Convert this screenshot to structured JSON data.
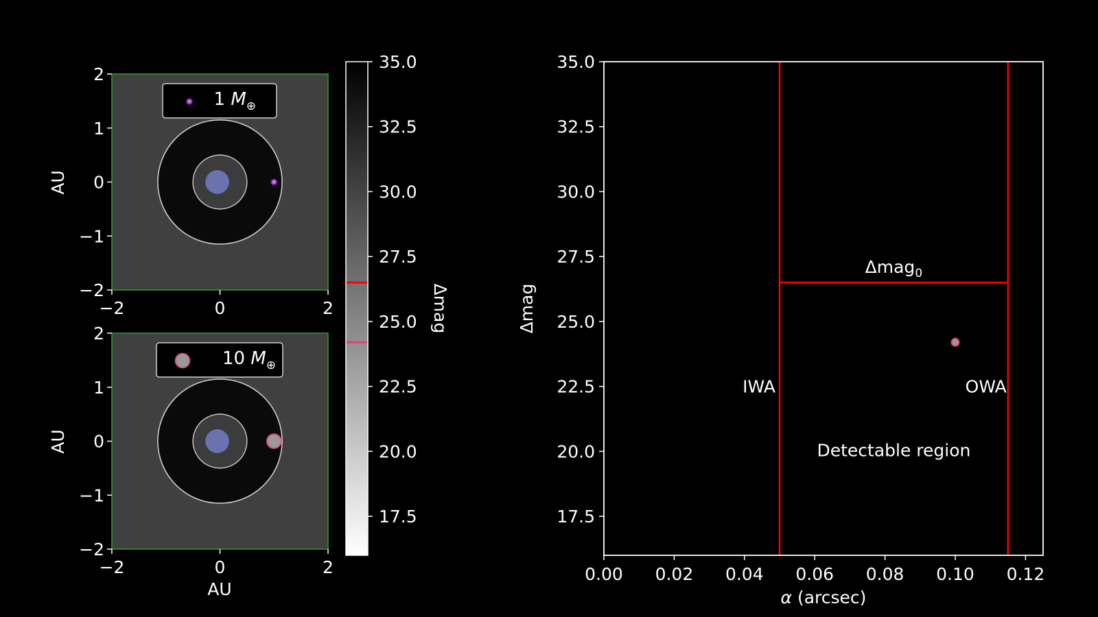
{
  "colors": {
    "background": "#000000",
    "axes_frame": "#ffffff",
    "orbit_panel_bg": "#404040",
    "orbit_panel_frame": "#2ca02c",
    "orbit_region": "#0a0a0a",
    "orbit_line": "#cccccc",
    "inner_circle": "#3c3c3c",
    "star": "#6a72b0",
    "planet_1_fill": "#9b9b9b",
    "planet_1_edge": "#9400d3",
    "planet_10_fill": "#999999",
    "planet_10_edge": "#e05080",
    "limit_line": "#ff0000",
    "planet_10_marker": "#e04080"
  },
  "chart_data": [
    {
      "id": "orbit-1",
      "type": "scatter",
      "xlabel": "",
      "ylabel": "AU",
      "xlim": [
        -2,
        2
      ],
      "ylim": [
        -2,
        2
      ],
      "x_ticks": [
        "−2",
        "0",
        "2"
      ],
      "y_ticks": [
        "2",
        "1",
        "0",
        "−1",
        "−2"
      ],
      "legend": {
        "label": "1",
        "unit": "M",
        "sub": "⊕",
        "placement": "top-center"
      },
      "star": {
        "x": -0.05,
        "y": 0,
        "r": 0.22
      },
      "inner_circle_r": 0.5,
      "orbit_r": 1.15,
      "planet": {
        "x": 1.0,
        "y": 0,
        "r": 0.05
      }
    },
    {
      "id": "orbit-10",
      "type": "scatter",
      "xlabel": "AU",
      "ylabel": "AU",
      "xlim": [
        -2,
        2
      ],
      "ylim": [
        -2,
        2
      ],
      "x_ticks": [
        "−2",
        "0",
        "2"
      ],
      "y_ticks": [
        "2",
        "1",
        "0",
        "−1",
        "−2"
      ],
      "legend": {
        "label": "10",
        "unit": "M",
        "sub": "⊕",
        "placement": "top-center"
      },
      "star": {
        "x": -0.05,
        "y": 0,
        "r": 0.22
      },
      "inner_circle_r": 0.5,
      "orbit_r": 1.15,
      "planet": {
        "x": 1.0,
        "y": 0,
        "r": 0.13
      }
    },
    {
      "id": "colorbar",
      "type": "heatmap",
      "label": "Δmag",
      "range": [
        16,
        35
      ],
      "ticks": [
        "35.0",
        "32.5",
        "30.0",
        "27.5",
        "25.0",
        "22.5",
        "20.0",
        "17.5"
      ],
      "tick_values": [
        35,
        32.5,
        30,
        27.5,
        25,
        22.5,
        20,
        17.5
      ],
      "markers": [
        {
          "value": 26.5,
          "color": "#ff0000"
        },
        {
          "value": 24.2,
          "color": "#e04080"
        }
      ]
    },
    {
      "id": "detection",
      "type": "scatter",
      "xlabel_prefix": "α",
      "xlabel_suffix": " (arcsec)",
      "ylabel": "Δmag",
      "xlim": [
        0,
        0.125
      ],
      "ylim": [
        16,
        35
      ],
      "x_ticks": [
        "0.00",
        "0.02",
        "0.04",
        "0.06",
        "0.08",
        "0.10",
        "0.12"
      ],
      "x_tick_values": [
        0,
        0.02,
        0.04,
        0.06,
        0.08,
        0.1,
        0.12
      ],
      "y_ticks": [
        "35.0",
        "32.5",
        "30.0",
        "27.5",
        "25.0",
        "22.5",
        "20.0",
        "17.5"
      ],
      "y_tick_values": [
        35,
        32.5,
        30,
        27.5,
        25,
        22.5,
        20,
        17.5
      ],
      "iwa": 0.05,
      "owa": 0.115,
      "dmag0": 26.5,
      "points": [
        {
          "x": 0.1,
          "y": 24.2
        }
      ],
      "annotations": {
        "iwa": "IWA",
        "owa": "OWA",
        "dmag0_base": "Δmag",
        "dmag0_sub": "0",
        "region": "Detectable region"
      }
    }
  ]
}
